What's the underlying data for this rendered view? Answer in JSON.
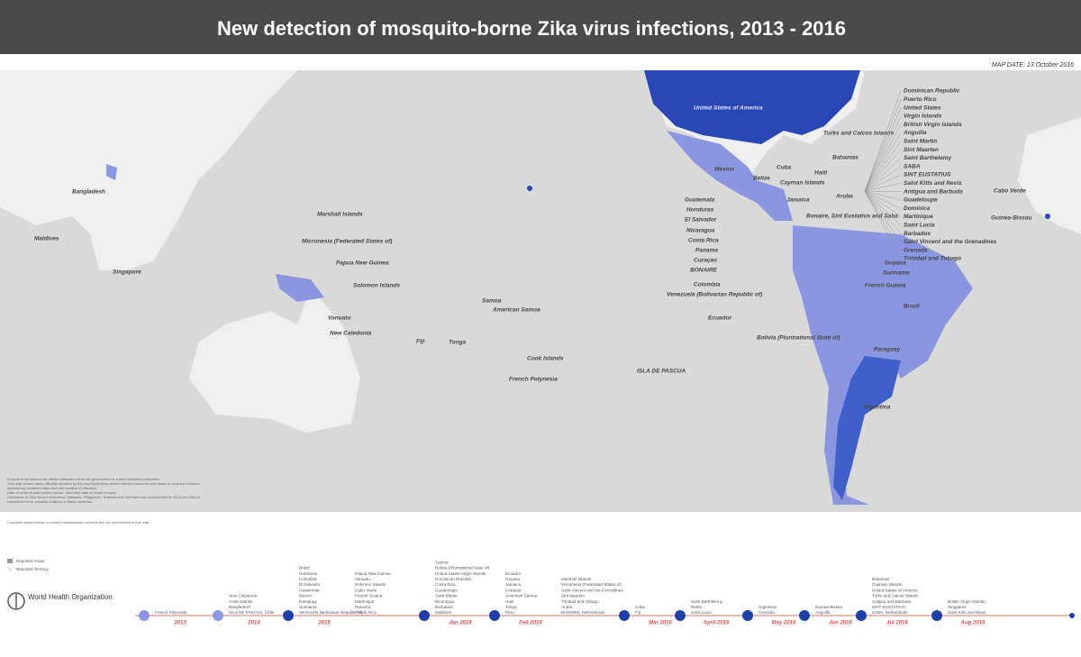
{
  "header": {
    "title": "New detection of mosquito-borne Zika virus infections, 2013 - 2016"
  },
  "map_date": "MAP DATE: 13 October 2016",
  "map_labels": [
    "Bangladesh",
    "Maldives",
    "Singapore",
    "Marshall Islands",
    "Micronesia (Federated States of)",
    "Papua New Guinea",
    "Solomon Islands",
    "Vanuatu",
    "New Caledonia",
    "Fiji",
    "Tonga",
    "Samoa",
    "American Samoa",
    "Cook Islands",
    "French Polynesia",
    "ISLA DE PASCUA",
    "United States of America",
    "Mexico",
    "Cuba",
    "Belize",
    "Cayman Islands",
    "Turks and Caicos Islands",
    "Bahamas",
    "Haiti",
    "Jamaica",
    "Aruba",
    "Bonaire, Sint Eustatius and Saba",
    "Guatemala",
    "Honduras",
    "El Salvador",
    "Nicaragua",
    "Costa Rica",
    "Panama",
    "Curaçao",
    "BONAIRE",
    "Colombia",
    "Venezuela (Bolivarian Republic of)",
    "Ecuador",
    "Bolivia (Plurinational State of)",
    "Guyana",
    "Suriname",
    "French Guiana",
    "Brazil",
    "Paraguay",
    "Argentina",
    "Cabo Verde",
    "Guinea-Bissau"
  ],
  "caribbean_list": [
    "Dominican Republic",
    "Puerto Rico",
    "United States",
    "Virgin Islands",
    "British Virgin Islands",
    "Anguilla",
    "Saint Martin",
    "Sint Maarten",
    "Saint Barthelemy",
    "SABA",
    "SINT EUSTATIUS",
    "Saint Kitts and Nevis",
    "Antigua and Barbuda",
    "Guadeloupe",
    "Dominica",
    "Martinique",
    "Saint Lucia",
    "Barbados",
    "Saint Vincent and the Grenadines",
    "Grenada",
    "Trinidad and Tobago"
  ],
  "notes": [
    "A report is considered an official notification from the government or a peer reviewed publication.",
    "This map shows cases officially reported by the country/territory where infection occurred and cases of returned travelers",
    "reported by countries other than the location of infection.",
    "Date of onset is used where known, otherwise date of report is used.",
    "Circulation of Zika virus in Indonesia, Malaysia, Philippines, Thailand and Viet Nam was reported before 2015 and Zika is",
    "considered to be possibly endemic in these countries.",
    "Countries where person-to-person transmission occurred are not represented in this map."
  ],
  "legend": [
    "Reported Areas",
    "Reported Territory"
  ],
  "organization": "World Health Organization",
  "timeline": [
    {
      "period": "2013",
      "countries": [
        "French Polynesia"
      ]
    },
    {
      "period": "2014",
      "countries": [
        "New Caledonia",
        "Cook Islands",
        "Bangladesh",
        "ISLA DE PASCUA, Chile"
      ]
    },
    {
      "period": "2015",
      "countries": [
        "Brazil",
        "Honduras",
        "Colombia",
        "El Salvador",
        "Guatemala",
        "Mexico",
        "Paraguay",
        "Suriname",
        "Venezuela (Bolivarian Republic of)",
        "Papua New Guinea",
        "Vanuatu",
        "Solomon Islands",
        "Cabo Verde",
        "French Guiana",
        "Martinique",
        "Panama",
        "Puerto Rico"
      ]
    },
    {
      "period": "Jan 2016",
      "countries": [
        "Samoa",
        "Bolivia (Plurinational State of)",
        "United States Virgin Islands",
        "Dominican Republic",
        "Costa Rica",
        "Guadeloupe",
        "Saint Martin",
        "Nicaragua",
        "Barbados",
        "Maldives"
      ]
    },
    {
      "period": "Feb 2016",
      "countries": [
        "Ecuador",
        "Guyana",
        "Jamaica",
        "Curaçao",
        "American Samoa",
        "Haiti",
        "Tonga",
        "Peru",
        "Marshall Islands",
        "Micronesia (Federated States of)",
        "Saint Vincent and the Grenadines",
        "Sint Maarten",
        "Trinidad and Tobago",
        "Aruba",
        "BONAIRE, Netherlands"
      ]
    },
    {
      "period": "Mar 2016",
      "countries": [
        "Cuba",
        "Fiji"
      ]
    },
    {
      "period": "April 2016",
      "countries": [
        "Saint Barthélemy",
        "Belize",
        "Saint Lucia"
      ]
    },
    {
      "period": "May 2016",
      "countries": [
        "Argentina",
        "Grenada"
      ]
    },
    {
      "period": "Jun 2016",
      "countries": [
        "Guinea-Bissau",
        "Anguilla"
      ]
    },
    {
      "period": "Jul 2016",
      "countries": [
        "Bahamas",
        "Cayman Islands",
        "United States of America",
        "Turks and Caicos Islands",
        "Antigua and Barbuda",
        "SINT EUSTATIUS",
        "SABA, Netherlands"
      ]
    },
    {
      "period": "Aug 2016",
      "countries": [
        "British Virgin Islands",
        "Singapore",
        "Saint Kitts and Nevis"
      ]
    }
  ]
}
